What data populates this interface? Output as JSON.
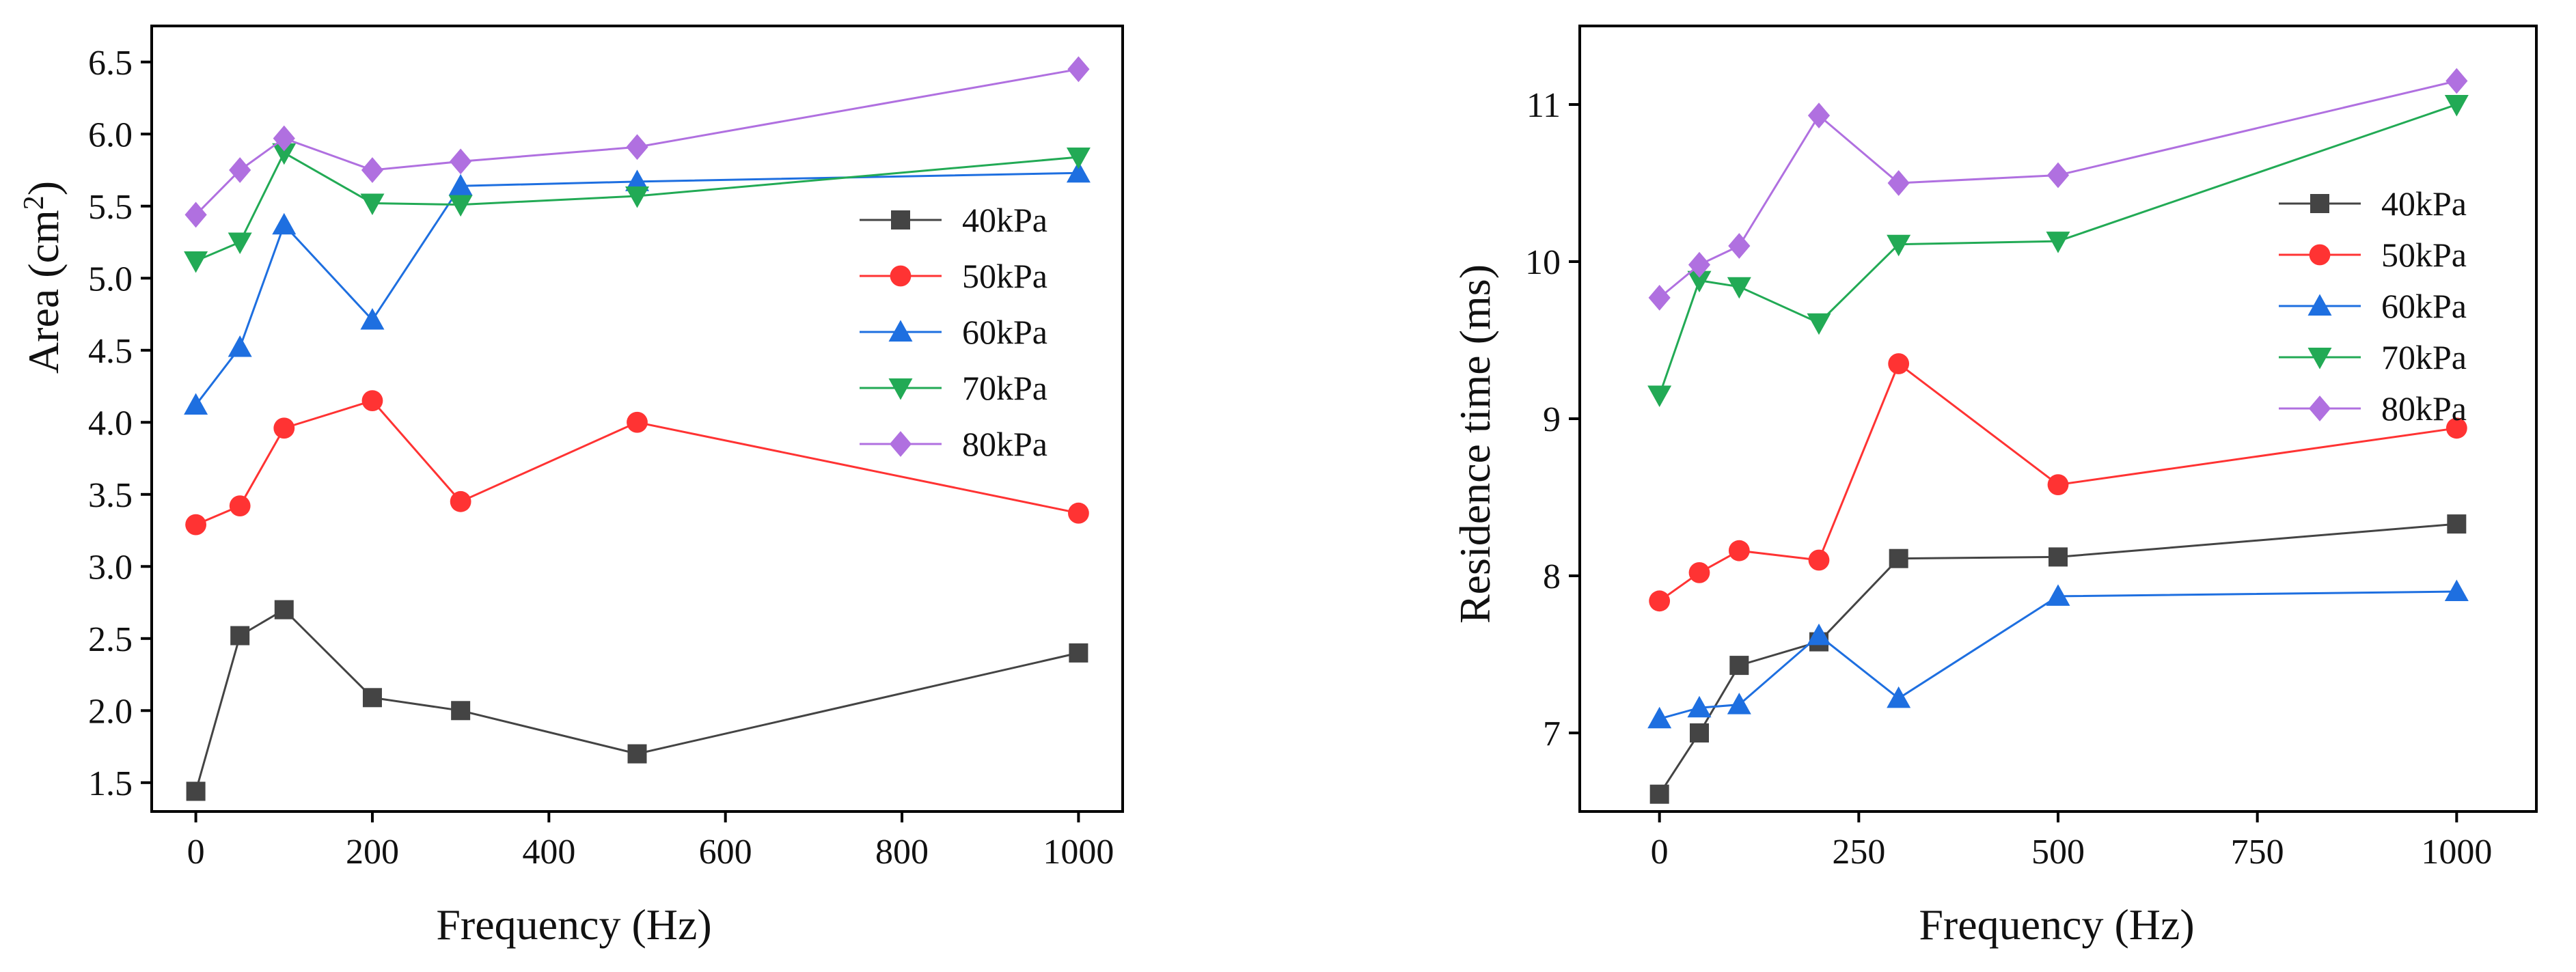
{
  "chart_data": [
    {
      "type": "line",
      "title": "",
      "xlabel": "Frequency (Hz)",
      "ylabel": "Area (cm²)",
      "xlim": [
        -50,
        1050
      ],
      "ylim": [
        1.3,
        6.75
      ],
      "xticks": [
        0,
        200,
        400,
        600,
        800,
        1000
      ],
      "yticks": [
        1.5,
        2.0,
        2.5,
        3.0,
        3.5,
        4.0,
        4.5,
        5.0,
        5.5,
        6.0,
        6.5
      ],
      "ytick_decimals": 1,
      "legend_position": "right",
      "x": [
        0,
        50,
        100,
        200,
        300,
        500,
        1000
      ],
      "series": [
        {
          "name": "40kPa",
          "color": "#444444",
          "marker": "square",
          "values": [
            1.44,
            2.52,
            2.7,
            2.09,
            2.0,
            1.7,
            2.4
          ]
        },
        {
          "name": "50kPa",
          "color": "#ff3333",
          "marker": "circle",
          "values": [
            3.29,
            3.42,
            3.96,
            4.15,
            3.45,
            4.0,
            3.37
          ]
        },
        {
          "name": "60kPa",
          "color": "#1e6fe0",
          "marker": "triangle-up",
          "values": [
            4.12,
            4.52,
            5.37,
            4.71,
            5.64,
            5.67,
            5.73
          ]
        },
        {
          "name": "70kPa",
          "color": "#22aa55",
          "marker": "triangle-down",
          "values": [
            5.12,
            5.25,
            5.87,
            5.52,
            5.51,
            5.57,
            5.84
          ]
        },
        {
          "name": "80kPa",
          "color": "#b070e0",
          "marker": "diamond",
          "values": [
            5.44,
            5.75,
            5.97,
            5.75,
            5.81,
            5.91,
            6.45
          ]
        }
      ]
    },
    {
      "type": "line",
      "title": "",
      "xlabel": "Frequency (Hz)",
      "ylabel": "Residence time (ms)",
      "xlim": [
        -100,
        1100
      ],
      "ylim": [
        6.5,
        11.5
      ],
      "xticks": [
        0,
        250,
        500,
        750,
        1000
      ],
      "yticks": [
        7,
        8,
        9,
        10,
        11
      ],
      "ytick_decimals": 0,
      "legend_position": "top-right",
      "x": [
        0,
        50,
        100,
        200,
        300,
        500,
        1000
      ],
      "series": [
        {
          "name": "40kPa",
          "color": "#444444",
          "marker": "square",
          "values": [
            6.61,
            7.0,
            7.43,
            7.58,
            8.11,
            8.12,
            8.33
          ]
        },
        {
          "name": "50kPa",
          "color": "#ff3333",
          "marker": "circle",
          "values": [
            7.84,
            8.02,
            8.16,
            8.1,
            9.35,
            8.58,
            8.94
          ]
        },
        {
          "name": "60kPa",
          "color": "#1e6fe0",
          "marker": "triangle-up",
          "values": [
            7.09,
            7.16,
            7.18,
            7.62,
            7.22,
            7.87,
            7.9
          ]
        },
        {
          "name": "70kPa",
          "color": "#22aa55",
          "marker": "triangle-down",
          "values": [
            9.15,
            9.88,
            9.84,
            9.61,
            10.11,
            10.13,
            11.0
          ]
        },
        {
          "name": "80kPa",
          "color": "#b070e0",
          "marker": "diamond",
          "values": [
            9.77,
            9.98,
            10.1,
            10.93,
            10.5,
            10.55,
            11.15
          ]
        }
      ]
    }
  ]
}
